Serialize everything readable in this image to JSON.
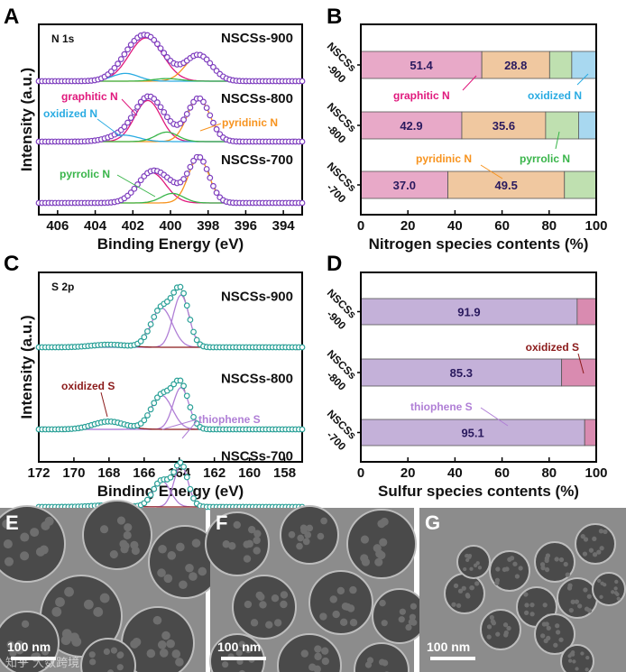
{
  "panel_letters": [
    "A",
    "B",
    "C",
    "D",
    "E",
    "F",
    "G"
  ],
  "colors": {
    "graphitic": "#e0197d",
    "oxidizedN": "#29abe2",
    "pyridinic": "#f7931e",
    "pyrrolic": "#39b54a",
    "thiophene": "#b07fd6",
    "oxidizedS": "#8b1a1a",
    "pointsN": "#7f3fbf",
    "pointsS": "#2aa198",
    "barGraphitic": "#e8a9c8",
    "barPyridinic": "#f0c8a0",
    "barPyrrolic": "#bfe0b0",
    "barOxidizedN": "#a8d8f0",
    "barThiophene": "#c4b1d9",
    "barOxidizedS": "#d98bb0"
  },
  "chart_data": [
    {
      "type": "line",
      "panel": "A",
      "title": "N 1s",
      "xlabel": "Binding Energy (eV)",
      "ylabel": "Intensity (a.u.)",
      "xlim": [
        407,
        393
      ],
      "xticks": [
        406,
        404,
        402,
        400,
        398,
        396,
        394
      ],
      "series": [
        {
          "name": "NSCSs-900",
          "components": [
            {
              "name": "graphitic N",
              "center": 401.3,
              "height": 1.0,
              "width": 0.9
            },
            {
              "name": "pyridinic N",
              "center": 398.5,
              "height": 0.6,
              "width": 0.7
            },
            {
              "name": "oxidized N",
              "center": 402.4,
              "height": 0.18,
              "width": 0.7
            },
            {
              "name": "pyrrolic N",
              "center": 400.2,
              "height": 0.06,
              "width": 0.7
            }
          ]
        },
        {
          "name": "NSCSs-800",
          "components": [
            {
              "name": "graphitic N",
              "center": 401.2,
              "height": 0.95,
              "width": 0.7
            },
            {
              "name": "pyridinic N",
              "center": 398.5,
              "height": 1.0,
              "width": 0.6
            },
            {
              "name": "oxidized N",
              "center": 402.5,
              "height": 0.15,
              "width": 0.8
            },
            {
              "name": "pyrrolic N",
              "center": 400.2,
              "height": 0.22,
              "width": 0.6
            }
          ]
        },
        {
          "name": "NSCSs-700",
          "components": [
            {
              "name": "graphitic N",
              "center": 401.0,
              "height": 0.7,
              "width": 0.75
            },
            {
              "name": "pyridinic N",
              "center": 398.5,
              "height": 1.05,
              "width": 0.55
            },
            {
              "name": "pyrrolic N",
              "center": 399.9,
              "height": 0.22,
              "width": 0.6
            }
          ]
        }
      ],
      "annotations": [
        "graphitic N",
        "oxidized N",
        "pyridinic N",
        "pyrrolic N"
      ]
    },
    {
      "type": "bar",
      "panel": "B",
      "orientation": "horizontal-stacked",
      "xlabel": "Nitrogen species contents (%)",
      "xlim": [
        0,
        100
      ],
      "xticks": [
        0,
        20,
        40,
        60,
        80,
        100
      ],
      "categories": [
        "NSCSs -900",
        "NSCSs -800",
        "NSCSs -700"
      ],
      "series": [
        {
          "name": "graphitic N",
          "values": [
            51.4,
            42.9,
            37.0
          ]
        },
        {
          "name": "pyridinic N",
          "values": [
            28.8,
            35.6,
            49.5
          ]
        },
        {
          "name": "pyrrolic N",
          "values": [
            9.4,
            14.0,
            13.5
          ]
        },
        {
          "name": "oxidized N",
          "values": [
            10.4,
            7.5,
            0
          ]
        }
      ],
      "annotations": [
        "graphitic N",
        "oxidized N",
        "pyridinic N",
        "pyrrolic N"
      ]
    },
    {
      "type": "line",
      "panel": "C",
      "title": "S 2p",
      "xlabel": "Binding Energy (eV)",
      "ylabel": "Intensity (a.u.)",
      "xlim": [
        172,
        157
      ],
      "xticks": [
        172,
        170,
        168,
        166,
        164,
        162,
        160,
        158
      ],
      "series": [
        {
          "name": "NSCSs-900",
          "components": [
            {
              "name": "thiophene S",
              "center": 165.0,
              "height": 0.75,
              "width": 0.6
            },
            {
              "name": "thiophene S",
              "center": 163.9,
              "height": 1.0,
              "width": 0.45
            },
            {
              "name": "oxidized S",
              "center": 168.0,
              "height": 0.05,
              "width": 1.0
            }
          ]
        },
        {
          "name": "NSCSs-800",
          "components": [
            {
              "name": "thiophene S",
              "center": 165.0,
              "height": 0.65,
              "width": 0.6
            },
            {
              "name": "thiophene S",
              "center": 163.9,
              "height": 0.8,
              "width": 0.45
            },
            {
              "name": "oxidized S",
              "center": 168.0,
              "height": 0.15,
              "width": 0.9
            }
          ]
        },
        {
          "name": "NSCSs-700",
          "components": [
            {
              "name": "thiophene S",
              "center": 165.0,
              "height": 0.5,
              "width": 0.5
            },
            {
              "name": "thiophene S",
              "center": 163.9,
              "height": 0.8,
              "width": 0.4
            },
            {
              "name": "oxidized S",
              "center": 168.0,
              "height": 0.03,
              "width": 1.0
            }
          ]
        }
      ],
      "annotations": [
        "oxidized S",
        "thiophene S"
      ]
    },
    {
      "type": "bar",
      "panel": "D",
      "orientation": "horizontal-stacked",
      "xlabel": "Sulfur species contents (%)",
      "xlim": [
        0,
        100
      ],
      "xticks": [
        0,
        20,
        40,
        60,
        80,
        100
      ],
      "categories": [
        "NSCSs -900",
        "NSCSs -800",
        "NSCSs -700"
      ],
      "series": [
        {
          "name": "thiophene S",
          "values": [
            91.9,
            85.3,
            95.1
          ]
        },
        {
          "name": "oxidized S",
          "values": [
            8.1,
            14.7,
            4.9
          ]
        }
      ],
      "annotations": [
        "oxidized S",
        "thiophene S"
      ]
    }
  ],
  "tem": [
    {
      "label": "E",
      "scale": "100 nm"
    },
    {
      "label": "F",
      "scale": "100 nm"
    },
    {
      "label": "G",
      "scale": "100 nm"
    }
  ],
  "watermark": "知乎 大数跨境"
}
